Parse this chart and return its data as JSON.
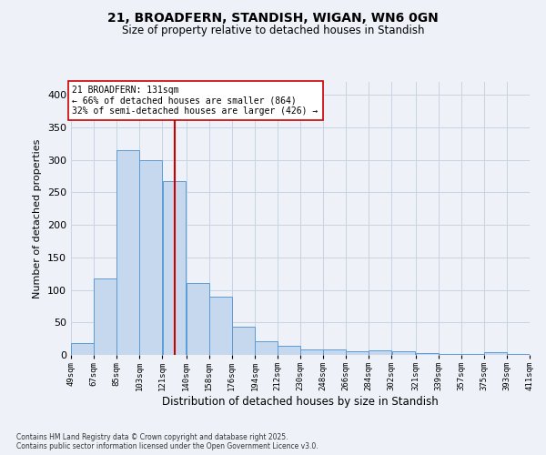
{
  "title": "21, BROADFERN, STANDISH, WIGAN, WN6 0GN",
  "subtitle": "Size of property relative to detached houses in Standish",
  "xlabel": "Distribution of detached houses by size in Standish",
  "ylabel": "Number of detached properties",
  "footnote": "Contains HM Land Registry data © Crown copyright and database right 2025.\nContains public sector information licensed under the Open Government Licence v3.0.",
  "bar_color": "#c5d8ed",
  "bar_edge_color": "#5b9bd5",
  "grid_color": "#c8d4e3",
  "background_color": "#eef2f8",
  "vline_x": 131,
  "vline_color": "#cc0000",
  "annotation_text": "21 BROADFERN: 131sqm\n← 66% of detached houses are smaller (864)\n32% of semi-detached houses are larger (426) →",
  "annotation_box_color": "#ffffff",
  "annotation_box_edge": "#cc0000",
  "bins": [
    49,
    67,
    85,
    103,
    121,
    140,
    158,
    176,
    194,
    212,
    230,
    248,
    266,
    284,
    302,
    321,
    339,
    357,
    375,
    393,
    411
  ],
  "values": [
    18,
    118,
    315,
    300,
    268,
    110,
    90,
    44,
    21,
    14,
    9,
    8,
    6,
    7,
    6,
    3,
    2,
    1,
    4,
    1
  ],
  "ylim": [
    0,
    420
  ],
  "yticks": [
    0,
    50,
    100,
    150,
    200,
    250,
    300,
    350,
    400
  ]
}
